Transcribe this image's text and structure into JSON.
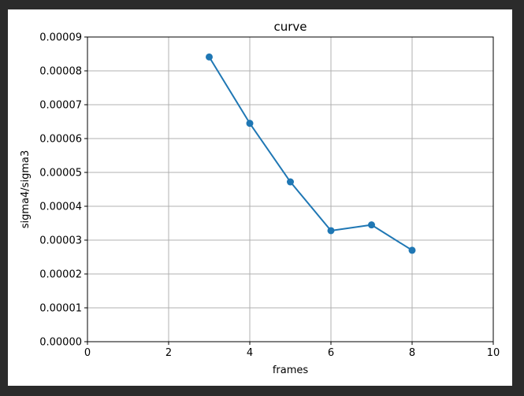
{
  "chart_data": {
    "type": "line",
    "title": "curve",
    "xlabel": "frames",
    "ylabel": "sigma4/sigma3",
    "xlim": [
      0,
      10
    ],
    "ylim": [
      0,
      9e-05
    ],
    "x_ticks": [
      0,
      2,
      4,
      6,
      8,
      10
    ],
    "y_ticks": [
      "0.00000",
      "0.00001",
      "0.00002",
      "0.00003",
      "0.00004",
      "0.00005",
      "0.00006",
      "0.00007",
      "0.00008",
      "0.00009"
    ],
    "grid": true,
    "series": [
      {
        "x": [
          3,
          4,
          5,
          6,
          7,
          8
        ],
        "values": [
          8.41e-05,
          6.45e-05,
          4.72e-05,
          3.28e-05,
          3.45e-05,
          2.7e-05
        ],
        "color": "#1f77b4",
        "marker": "circle"
      }
    ]
  }
}
